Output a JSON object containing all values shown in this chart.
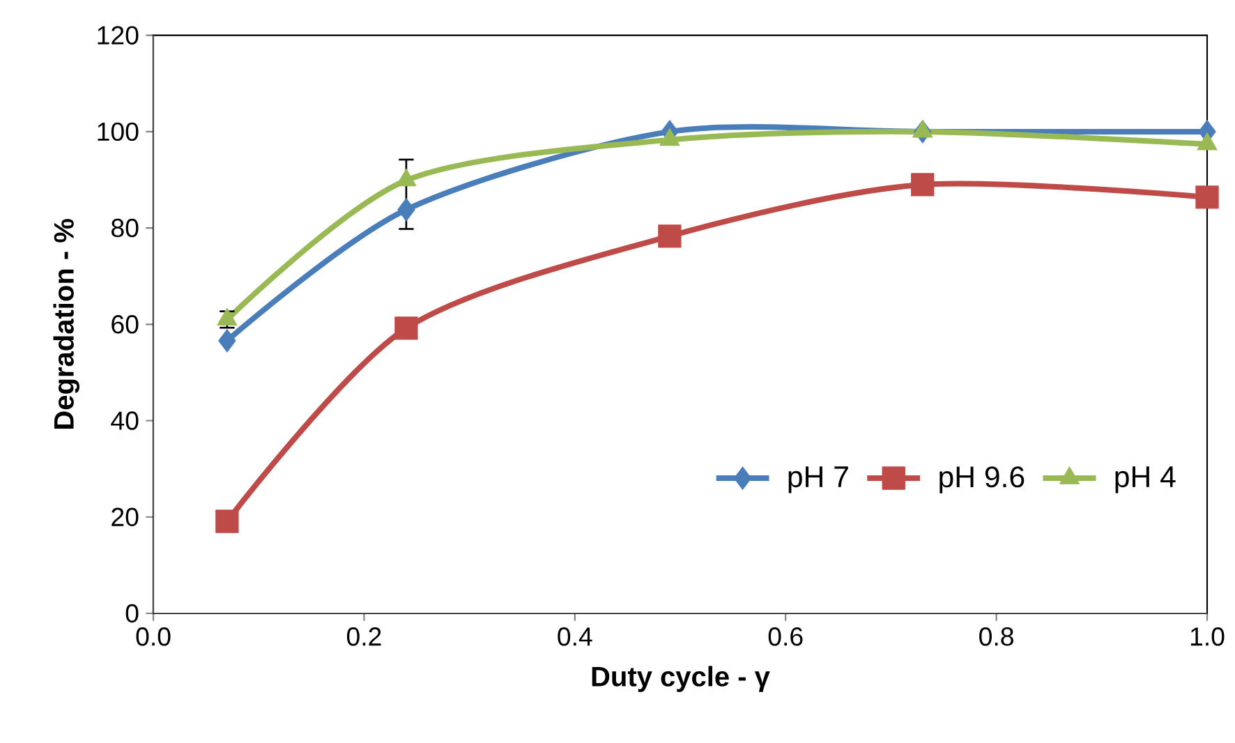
{
  "chart_data": {
    "type": "line",
    "xlabel": "Duty cycle - γ",
    "ylabel": "Degradation -  %",
    "x": [
      0.07,
      0.24,
      0.49,
      0.73,
      1.0
    ],
    "series": [
      {
        "name": "pH 7",
        "color": "#4a7ebb",
        "marker": "diamond",
        "values": [
          56.6,
          83.8,
          100,
          100,
          100
        ]
      },
      {
        "name": "pH 9.6",
        "color": "#be4b48",
        "marker": "square",
        "values": [
          19.1,
          59.2,
          78.3,
          89,
          86.4
        ]
      },
      {
        "name": "pH 4",
        "color": "#98b954",
        "marker": "triangle",
        "values": [
          61,
          89.9,
          98.3,
          100,
          97.4
        ],
        "errors": [
          1.7,
          [
            79.8,
            94.2
          ],
          null,
          null,
          null
        ]
      }
    ],
    "xlim": [
      0,
      1.0
    ],
    "xticks": [
      {
        "value": 0,
        "label": "0.0"
      },
      {
        "value": 0.2,
        "label": "0.2"
      },
      {
        "value": 0.4,
        "label": "0.4"
      },
      {
        "value": 0.6,
        "label": "0.6"
      },
      {
        "value": 0.8,
        "label": "0.8"
      },
      {
        "value": 1.0,
        "label": "1.0"
      }
    ],
    "ylim": [
      0,
      120
    ],
    "yticks": [
      0,
      20,
      40,
      60,
      80,
      100,
      120
    ],
    "grid": false,
    "legend": "bottom right"
  }
}
